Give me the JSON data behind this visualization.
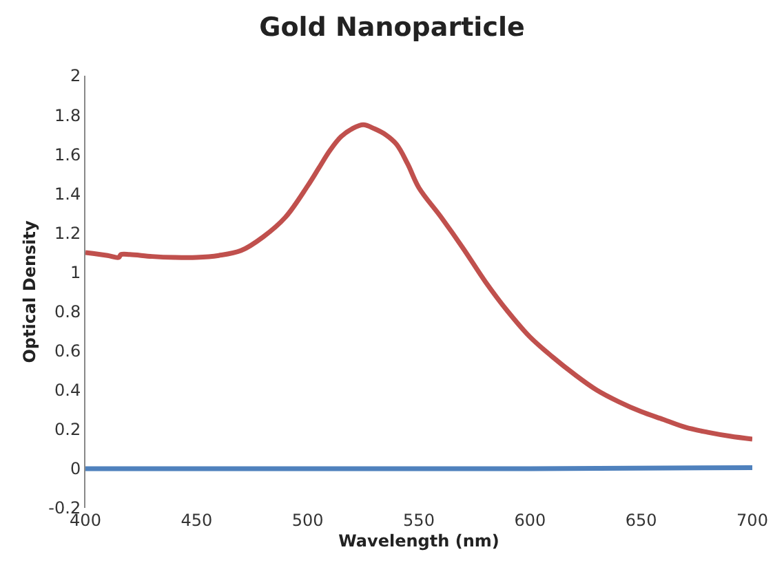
{
  "chart_data": {
    "type": "line",
    "title": "Gold Nanoparticle",
    "xlabel": "Wavelength (nm)",
    "ylabel": "Optical Density",
    "xlim": [
      400,
      700
    ],
    "xticks": [
      400,
      450,
      500,
      550,
      600,
      650,
      700
    ],
    "ylim": [
      -0.2,
      2
    ],
    "yticks": [
      -0.2,
      0,
      0.2,
      0.4,
      0.6,
      0.8,
      1,
      1.2,
      1.4,
      1.6,
      1.8,
      2
    ],
    "grid": false,
    "legend": false,
    "marker": "none",
    "line_style": "solid",
    "series": [
      {
        "color": "#c0504d",
        "x": [
          400,
          410,
          415,
          416,
          420,
          430,
          440,
          450,
          460,
          470,
          480,
          490,
          500,
          505,
          510,
          515,
          520,
          525,
          530,
          535,
          540,
          545,
          550,
          560,
          570,
          580,
          590,
          600,
          610,
          620,
          630,
          640,
          650,
          660,
          670,
          680,
          690,
          700
        ],
        "values": [
          1.1,
          1.085,
          1.075,
          1.09,
          1.09,
          1.08,
          1.075,
          1.075,
          1.085,
          1.11,
          1.18,
          1.28,
          1.44,
          1.53,
          1.62,
          1.69,
          1.73,
          1.75,
          1.73,
          1.7,
          1.65,
          1.55,
          1.43,
          1.28,
          1.12,
          0.95,
          0.8,
          0.67,
          0.57,
          0.48,
          0.4,
          0.34,
          0.29,
          0.25,
          0.21,
          0.185,
          0.165,
          0.15
        ]
      },
      {
        "color": "#4f81bd",
        "x": [
          400,
          500,
          600,
          700
        ],
        "values": [
          0,
          0,
          0,
          0.005
        ]
      }
    ]
  }
}
